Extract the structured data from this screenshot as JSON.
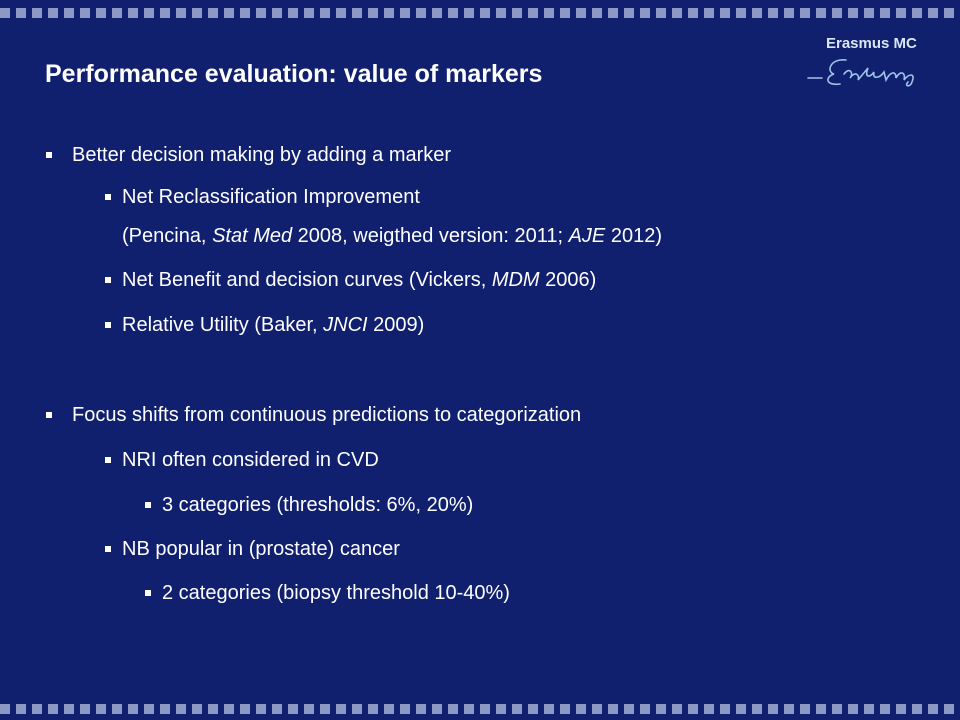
{
  "title": "Performance evaluation: value of markers",
  "logo": "Erasmus MC",
  "items": [
    [
      [
        "Better decision making by adding a marker"
      ]
    ],
    [
      [
        "Net Reclassification Improvement"
      ],
      [
        "(Pencina, ",
        "Stat Med",
        " 2008, weigthed version: 2011; ",
        "AJE",
        " 2012)"
      ]
    ],
    [
      [
        "Net Benefit and decision curves (Vickers, ",
        "MDM",
        " 2006)"
      ]
    ],
    [
      [
        "Relative Utility (Baker, ",
        "JNCI",
        " 2009)"
      ]
    ],
    [
      [
        "Focus shifts from continuous predictions to categorization"
      ]
    ],
    [
      [
        "NRI often considered in CVD"
      ]
    ],
    [
      [
        "3 categories (thresholds: 6%, 20%)"
      ]
    ],
    [
      [
        "NB popular in (prostate) cancer"
      ]
    ],
    [
      [
        "2 categories (biopsy threshold 10-40%)"
      ]
    ]
  ]
}
